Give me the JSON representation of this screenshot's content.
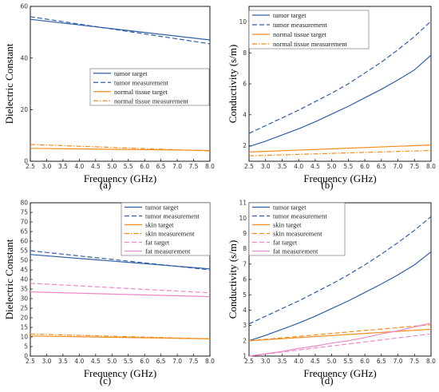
{
  "colors": {
    "tumor": "#2f5fa7",
    "normal": "#f28c1c",
    "skin": "#f28c1c",
    "fat": "#ee88c8"
  },
  "chart_data": [
    {
      "panel": "a",
      "type": "line",
      "xlabel": "Frequency (GHz)",
      "ylabel": "Dielectric Constant",
      "xlim": [
        2.5,
        8.0
      ],
      "ylim": [
        0,
        60
      ],
      "xticks": [
        "2.5",
        "3.0",
        "3.5",
        "4.0",
        "4.5",
        "5.0",
        "5.5",
        "6.0",
        "6.5",
        "7.0",
        "7.5",
        "8.0"
      ],
      "yticks": [
        "0",
        "20",
        "40",
        "60"
      ],
      "legend_position": "center-right",
      "series": [
        {
          "name": "tumor target",
          "color": "tumor",
          "style": "solid",
          "x": [
            2.5,
            8.0
          ],
          "y": [
            55.0,
            47.0
          ]
        },
        {
          "name": "tumor measurement",
          "color": "tumor",
          "style": "dash",
          "x": [
            2.5,
            8.0
          ],
          "y": [
            56.0,
            45.5
          ]
        },
        {
          "name": "normal tissue target",
          "color": "normal",
          "style": "solid",
          "x": [
            2.5,
            8.0
          ],
          "y": [
            5.0,
            4.2
          ]
        },
        {
          "name": "normal tissue measurement",
          "color": "normal",
          "style": "dashdot",
          "x": [
            2.5,
            8.0
          ],
          "y": [
            6.5,
            4.0
          ]
        }
      ]
    },
    {
      "panel": "b",
      "type": "line",
      "xlabel": "Frequency (GHz)",
      "ylabel": "Conductivity (s/m)",
      "xlim": [
        2.5,
        8.0
      ],
      "ylim": [
        1.0,
        11.0
      ],
      "xticks": [
        "2.5",
        "3.0",
        "3.5",
        "4.0",
        "4.5",
        "5.0",
        "5.5",
        "6.0",
        "6.5",
        "7.0",
        "7.5",
        "8.0"
      ],
      "yticks": [
        "2",
        "4",
        "6",
        "8",
        "10"
      ],
      "legend_position": "top-left",
      "series": [
        {
          "name": "tumor target",
          "color": "tumor",
          "style": "solid",
          "x": [
            2.5,
            3.0,
            3.5,
            4.0,
            4.5,
            5.0,
            5.5,
            6.0,
            6.5,
            7.0,
            7.5,
            8.0
          ],
          "y": [
            1.95,
            2.3,
            2.7,
            3.1,
            3.55,
            4.05,
            4.55,
            5.1,
            5.65,
            6.25,
            6.9,
            7.85
          ]
        },
        {
          "name": "tumor measurement",
          "color": "tumor",
          "style": "dash",
          "x": [
            2.5,
            3.0,
            3.5,
            4.0,
            4.5,
            5.0,
            5.5,
            6.0,
            6.5,
            7.0,
            7.5,
            8.0
          ],
          "y": [
            2.8,
            3.3,
            3.8,
            4.3,
            4.85,
            5.4,
            6.0,
            6.7,
            7.4,
            8.2,
            9.05,
            10.05
          ]
        },
        {
          "name": "normal tissue target",
          "color": "normal",
          "style": "solid",
          "x": [
            2.5,
            8.0
          ],
          "y": [
            1.6,
            2.05
          ]
        },
        {
          "name": "normal tissue measurement",
          "color": "normal",
          "style": "dashdot",
          "x": [
            2.5,
            8.0
          ],
          "y": [
            1.35,
            1.7
          ]
        }
      ]
    },
    {
      "panel": "c",
      "type": "line",
      "xlabel": "Frequency (GHz)",
      "ylabel": "Dielectric Constant",
      "xlim": [
        2.5,
        8.0
      ],
      "ylim": [
        0,
        80
      ],
      "xticks": [
        "2.5",
        "3.0",
        "3.5",
        "4.0",
        "4.5",
        "5.0",
        "5.5",
        "6.0",
        "6.5",
        "7.0",
        "7.5",
        "8.0"
      ],
      "yticks": [
        "0",
        "5",
        "10",
        "15",
        "20",
        "25",
        "30",
        "35",
        "40",
        "45",
        "50",
        "55",
        "60",
        "65",
        "70",
        "75",
        "80"
      ],
      "legend_position": "top-right",
      "series": [
        {
          "name": "tumor target",
          "color": "tumor",
          "style": "solid",
          "x": [
            2.5,
            8.0
          ],
          "y": [
            53.0,
            45.5
          ]
        },
        {
          "name": "tumor measurement",
          "color": "tumor",
          "style": "dash",
          "x": [
            2.5,
            8.0
          ],
          "y": [
            55.0,
            45.0
          ]
        },
        {
          "name": "skin target",
          "color": "skin",
          "style": "solid",
          "x": [
            2.5,
            8.0
          ],
          "y": [
            10.5,
            9.0
          ]
        },
        {
          "name": "skin measurement",
          "color": "skin",
          "style": "dashdot",
          "x": [
            2.5,
            8.0
          ],
          "y": [
            11.5,
            9.0
          ]
        },
        {
          "name": "fat target",
          "color": "fat",
          "style": "dash",
          "x": [
            2.5,
            8.0
          ],
          "y": [
            38.0,
            33.0
          ]
        },
        {
          "name": "fat measurement",
          "color": "fat",
          "style": "solid",
          "x": [
            2.5,
            8.0
          ],
          "y": [
            33.5,
            31.0
          ]
        }
      ]
    },
    {
      "panel": "d",
      "type": "line",
      "xlabel": "Frequency (GHz)",
      "ylabel": "Conductivity (s/m)",
      "xlim": [
        2.5,
        8.0
      ],
      "ylim": [
        1,
        11
      ],
      "xticks": [
        "2.5",
        "3.0",
        "3.5",
        "4.0",
        "4.5",
        "5.0",
        "5.5",
        "6.0",
        "6.5",
        "7.0",
        "7.5",
        "8.0"
      ],
      "yticks": [
        "1",
        "2",
        "3",
        "4",
        "5",
        "6",
        "7",
        "8",
        "9",
        "10",
        "11"
      ],
      "legend_position": "top-left",
      "series": [
        {
          "name": "tumor target",
          "color": "tumor",
          "style": "solid",
          "x": [
            2.5,
            3.0,
            3.5,
            4.0,
            4.5,
            5.0,
            5.5,
            6.0,
            6.5,
            7.0,
            7.5,
            8.0
          ],
          "y": [
            2.0,
            2.35,
            2.75,
            3.15,
            3.6,
            4.1,
            4.6,
            5.15,
            5.7,
            6.3,
            6.95,
            7.8
          ]
        },
        {
          "name": "tumor measurement",
          "color": "tumor",
          "style": "dash",
          "x": [
            2.5,
            3.0,
            3.5,
            4.0,
            4.5,
            5.0,
            5.5,
            6.0,
            6.5,
            7.0,
            7.5,
            8.0
          ],
          "y": [
            3.1,
            3.6,
            4.1,
            4.6,
            5.15,
            5.7,
            6.3,
            6.95,
            7.65,
            8.4,
            9.2,
            10.1
          ]
        },
        {
          "name": "skin target",
          "color": "skin",
          "style": "solid",
          "x": [
            2.5,
            8.0
          ],
          "y": [
            2.0,
            2.75
          ]
        },
        {
          "name": "skin measurement",
          "color": "skin",
          "style": "dash",
          "x": [
            2.5,
            8.0
          ],
          "y": [
            2.0,
            3.05
          ]
        },
        {
          "name": "fat target",
          "color": "fat",
          "style": "dash",
          "x": [
            2.5,
            8.0
          ],
          "y": [
            1.0,
            2.45
          ]
        },
        {
          "name": "fat measurement",
          "color": "fat",
          "style": "solid",
          "x": [
            2.5,
            3.0,
            3.5,
            4.0,
            4.5,
            5.0,
            5.5,
            6.0,
            6.5,
            7.0,
            7.5,
            8.0
          ],
          "y": [
            1.0,
            1.15,
            1.3,
            1.5,
            1.65,
            1.85,
            2.0,
            2.2,
            2.45,
            2.65,
            2.9,
            3.15
          ]
        }
      ]
    }
  ],
  "panel_labels": [
    "(a)",
    "(b)",
    "(c)",
    "(d)"
  ]
}
